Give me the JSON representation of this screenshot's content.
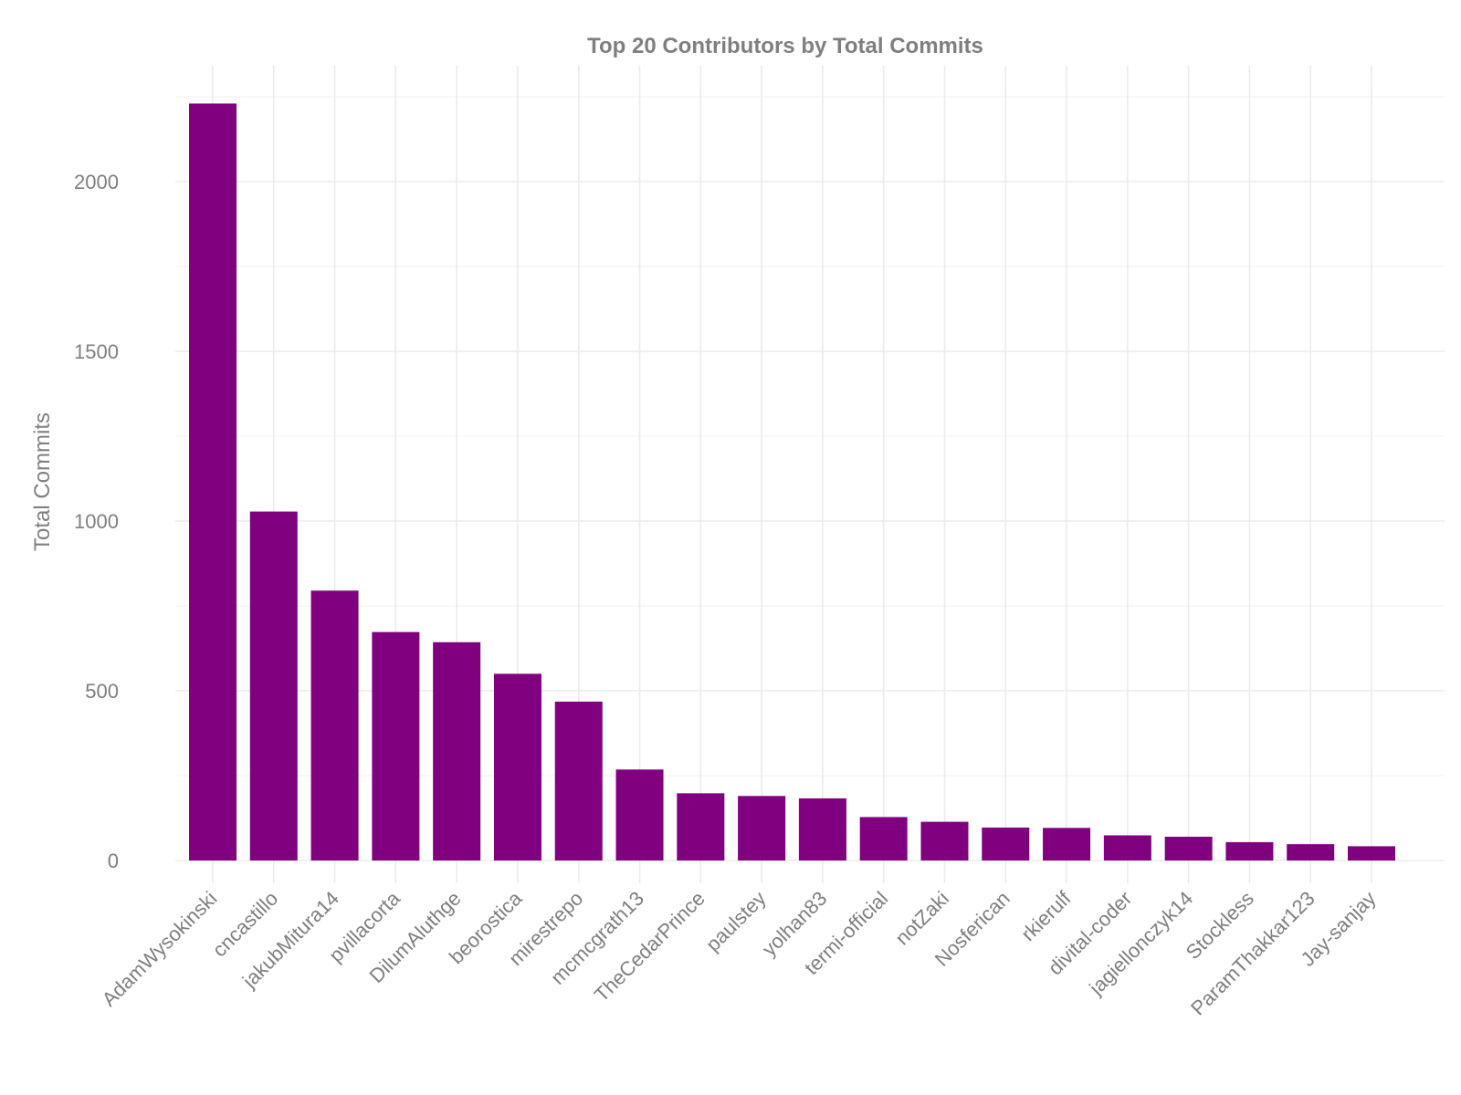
{
  "chart_data": {
    "type": "bar",
    "title": "Top 20 Contributors by Total Commits",
    "xlabel": "",
    "ylabel": "Total Commits",
    "ylim": [
      -80,
      2350
    ],
    "yticks": [
      0,
      500,
      1000,
      1500,
      2000
    ],
    "grid": true,
    "legend": "none",
    "categories": [
      "AdamWysokinski",
      "cncastillo",
      "jakubMitura14",
      "pvillacorta",
      "DilumAluthge",
      "beorostica",
      "mirestrepo",
      "mcmcgrath13",
      "TheCedarPrince",
      "paulstey",
      "yolhan83",
      "termi-official",
      "notZaki",
      "Nosferican",
      "rkierulf",
      "divital-coder",
      "jagiellonczyk14",
      "Stockless",
      "ParamThakkar123",
      "Jay-sanjay"
    ],
    "values": [
      2230,
      1028,
      795,
      673,
      643,
      550,
      468,
      268,
      198,
      190,
      183,
      128,
      114,
      97,
      96,
      74,
      70,
      54,
      48,
      42
    ]
  },
  "colors": {
    "bar": "#800080",
    "grid": "#ebebeb",
    "text": "#7f7f7f",
    "background": "#ffffff"
  }
}
